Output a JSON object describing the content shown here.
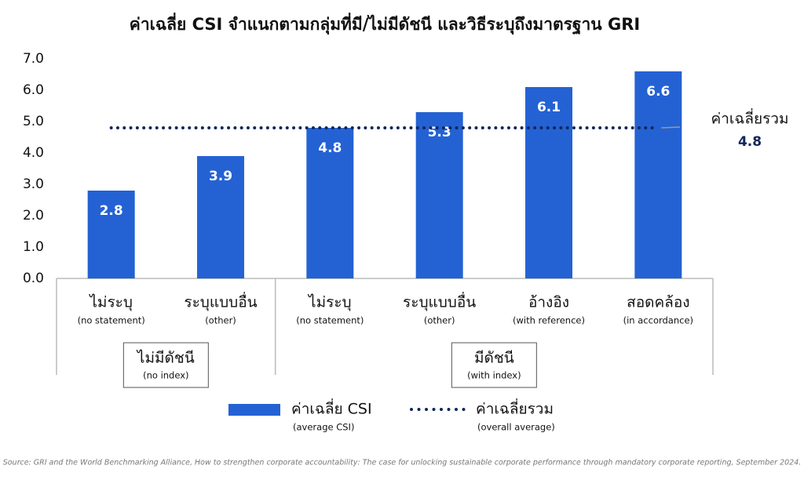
{
  "chart_data": {
    "type": "bar",
    "title": "ค่าเฉลี่ย CSI จำแนกตามกลุ่มที่มี/ไม่มีดัชนี และวิธีระบุถึงมาตรฐาน GRI",
    "categories": [
      "ไม่ระบุ",
      "ระบุแบบอื่น",
      "ไม่ระบุ",
      "ระบุแบบอื่น",
      "อ้างอิง",
      "สอดคล้อง"
    ],
    "category_notes": [
      "(no statement)",
      "(other)",
      "(no statement)",
      "(other)",
      "(with reference)",
      "(in accordance)"
    ],
    "category_groups": [
      "ไม่มีดัชนี",
      "ไม่มีดัชนี",
      "มีดัชนี",
      "มีดัชนี",
      "มีดัชนี",
      "มีดัชนี"
    ],
    "group_notes": [
      "(no index)",
      "(with index)"
    ],
    "series": [
      {
        "name": "ค่าเฉลี่ย CSI",
        "note": "(average CSI)",
        "color": "#2462d4",
        "values": [
          2.8,
          3.9,
          4.8,
          5.3,
          6.1,
          6.6
        ]
      }
    ],
    "reference_line": {
      "name": "ค่าเฉลี่ยรวม",
      "note": "(overall average)",
      "value": 4.8,
      "color": "#10265a"
    },
    "ylim": [
      0,
      7
    ],
    "yticks": [
      {
        "value": 0,
        "label": "0.0"
      },
      {
        "value": 1,
        "label": "1.0"
      },
      {
        "value": 2,
        "label": "2.0"
      },
      {
        "value": 3,
        "label": "3.0"
      },
      {
        "value": 4,
        "label": "4.0"
      },
      {
        "value": 5,
        "label": "5.0"
      },
      {
        "value": 6,
        "label": "6.0"
      },
      {
        "value": 7,
        "label": "7.0"
      }
    ],
    "source": "Source: GRI and the World Benchmarking Alliance, How to strengthen corporate accountability: The case for unlocking sustainable corporate performance through mandatory corporate reporting, September 2024."
  }
}
